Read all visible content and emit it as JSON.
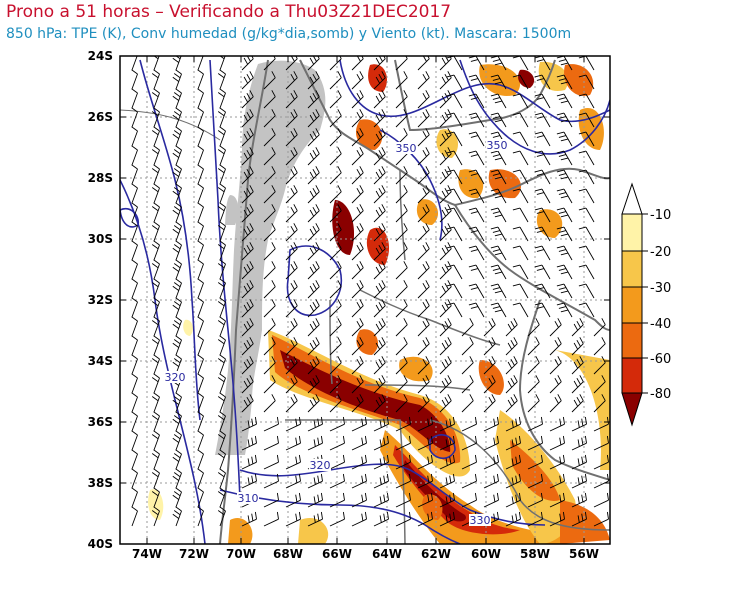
{
  "header": {
    "title": "Prono a 51 horas – Verificando a Thu03Z21DEC2017",
    "subtitle": "850 hPa: TPE (K), Conv humedad (g/kg*dia,somb) y Viento (kt). Mascara: 1500m"
  },
  "axes": {
    "lat_labels": [
      "24S",
      "26S",
      "28S",
      "30S",
      "32S",
      "34S",
      "36S",
      "38S",
      "40S"
    ],
    "lon_labels": [
      "74W",
      "72W",
      "70W",
      "68W",
      "66W",
      "64W",
      "62W",
      "60W",
      "58W",
      "56W"
    ]
  },
  "isotherm_labels": [
    "350",
    "350",
    "320",
    "320",
    "310",
    "330"
  ],
  "colorbar": {
    "labels": [
      "-10",
      "-20",
      "-30",
      "-40",
      "-60",
      "-80"
    ],
    "colors": [
      "#ffffff",
      "#fff3a8",
      "#f7c64a",
      "#f39a1c",
      "#ec6a10",
      "#d42a0a",
      "#8a0000"
    ]
  },
  "map_colors": {
    "mask": "#c3c3c3",
    "border": "#707070",
    "isotherm": "#2a2aa0",
    "grid": "#9a9a9a",
    "barb": "#000000"
  }
}
